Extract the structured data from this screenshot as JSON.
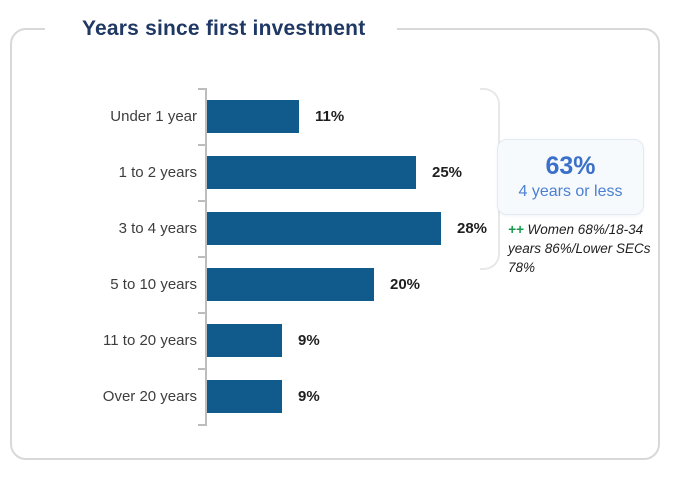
{
  "card": {
    "title": "Years since first investment"
  },
  "chart_data": {
    "type": "bar",
    "orientation": "horizontal",
    "title": "Years since first investment",
    "categories": [
      "Under 1 year",
      "1 to 2 years",
      "3 to 4 years",
      "5 to 10 years",
      "11 to 20 years",
      "Over 20 years"
    ],
    "values": [
      11,
      25,
      28,
      20,
      9,
      9
    ],
    "value_labels": [
      "11%",
      "25%",
      "28%",
      "20%",
      "9%",
      "9%"
    ],
    "xlim": [
      0,
      30
    ],
    "grid": false,
    "legend": false,
    "bar_color": "#115A8C",
    "xlabel": "",
    "ylabel": ""
  },
  "callout": {
    "headline": "63%",
    "subline": "4 years or less"
  },
  "annotation": {
    "marker": "++",
    "text": "Women 68%/18-34 years 86%/Lower SECs 78%"
  },
  "colors": {
    "title_text": "#1F3864",
    "bar": "#115A8C",
    "callout_headline": "#3A70C9",
    "callout_subline": "#4B80D1",
    "annotation_marker_green": "#17994C",
    "annotation_text": "#1F1F1F",
    "card_border": "#D8D8D8",
    "axis": "#BDBDBD",
    "bracket": "#E8E8E8",
    "category_label": "#3D3D3D",
    "value_label": "#1F1F1F",
    "callout_background": "#F7FAFD"
  }
}
